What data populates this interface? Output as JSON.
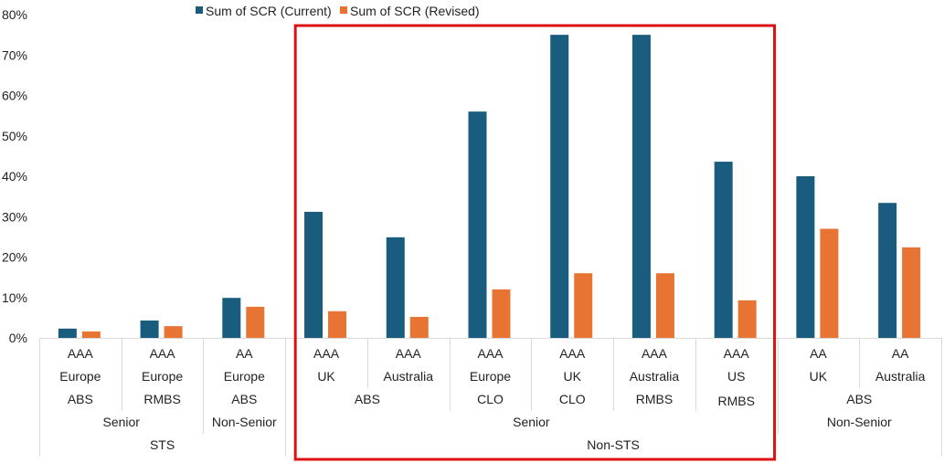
{
  "chart_data": {
    "type": "bar",
    "title": "",
    "xlabel": "",
    "ylabel": "",
    "ylim": [
      0,
      80
    ],
    "yticks": [
      "0%",
      "10%",
      "20%",
      "30%",
      "40%",
      "50%",
      "60%",
      "70%",
      "80%"
    ],
    "grid": false,
    "legend_position": "top",
    "colors": {
      "current": "#1a5c7e",
      "revised": "#e87433",
      "highlight": "#dd1111",
      "axis": "#d9d9d9"
    },
    "categories": [
      {
        "rating": "AAA",
        "region": "Europe",
        "type": "ABS"
      },
      {
        "rating": "AAA",
        "region": "Europe",
        "type": "RMBS"
      },
      {
        "rating": "AA",
        "region": "Europe",
        "type": "ABS"
      },
      {
        "rating": "AAA",
        "region": "UK",
        "type": ""
      },
      {
        "rating": "AAA",
        "region": "Australia",
        "type": ""
      },
      {
        "rating": "AAA",
        "region": "Europe",
        "type": "CLO"
      },
      {
        "rating": "AAA",
        "region": "UK",
        "type": "CLO"
      },
      {
        "rating": "AAA",
        "region": "Australia",
        "type": "RMBS"
      },
      {
        "rating": "AAA",
        "region": "US",
        "type": "RMBS"
      },
      {
        "rating": "AA",
        "region": "UK",
        "type": ""
      },
      {
        "rating": "AA",
        "region": "Australia",
        "type": ""
      }
    ],
    "type_groups": [
      {
        "label": "ABS",
        "span": [
          3,
          4
        ]
      },
      {
        "label": "ABS",
        "span": [
          9,
          10
        ]
      }
    ],
    "seniority_groups": [
      {
        "label": "Senior",
        "span": [
          0,
          1
        ]
      },
      {
        "label": "Non-Senior",
        "span": [
          2,
          2
        ]
      },
      {
        "label": "Senior",
        "span": [
          3,
          8
        ]
      },
      {
        "label": "Non-Senior",
        "span": [
          9,
          10
        ]
      }
    ],
    "sts_groups": [
      {
        "label": "STS",
        "span": [
          0,
          2
        ]
      },
      {
        "label": "Non-STS",
        "span": [
          3,
          10
        ]
      }
    ],
    "series": [
      {
        "name": "Sum of SCR (Current)",
        "values": [
          2.3,
          4.3,
          9.9,
          31.2,
          24.9,
          56.0,
          75.0,
          75.0,
          43.6,
          40.0,
          33.4
        ]
      },
      {
        "name": "Sum of SCR (Revised)",
        "values": [
          1.6,
          2.9,
          7.7,
          6.6,
          5.2,
          12.0,
          16.0,
          16.0,
          9.3,
          27.0,
          22.4
        ]
      }
    ],
    "highlight_span": [
      3,
      8
    ]
  }
}
